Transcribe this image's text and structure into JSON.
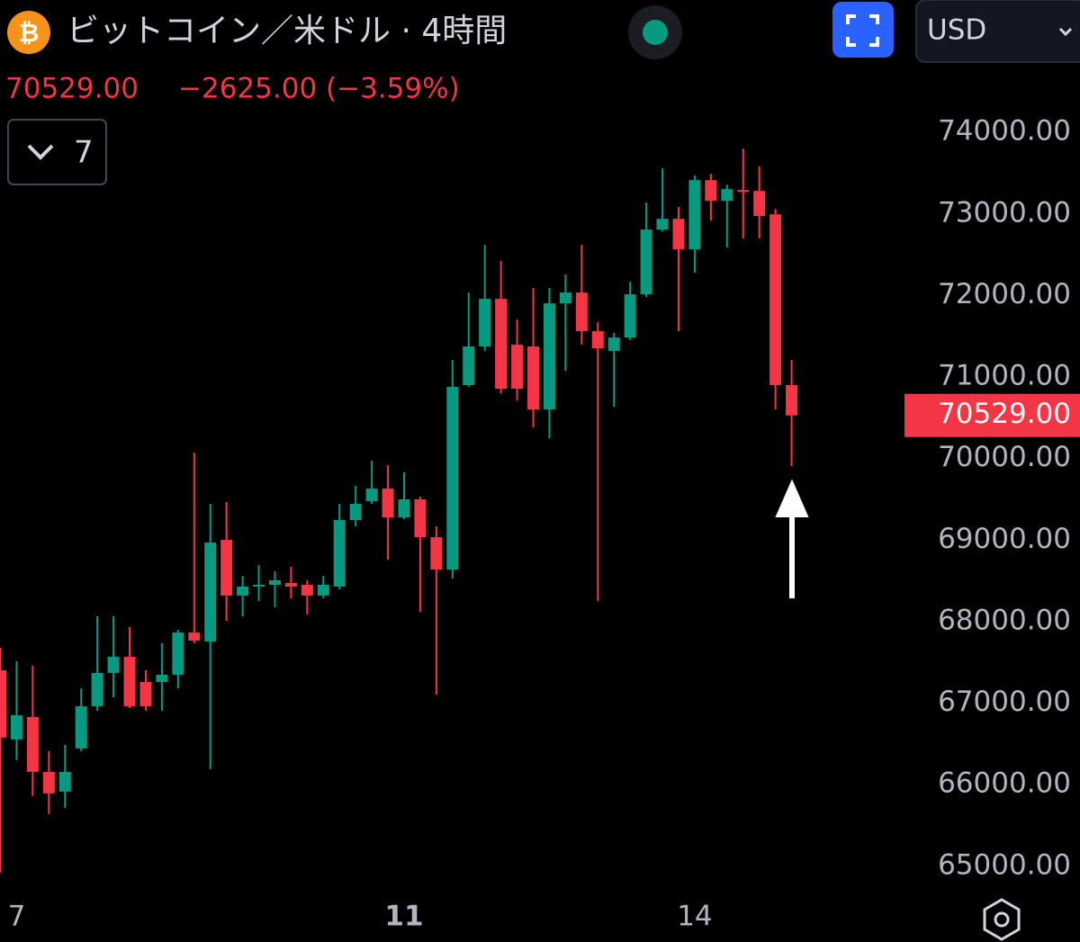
{
  "header": {
    "coin_symbol": "₿",
    "symbol": "ビットコイン／米ドル · 4時間",
    "currency": "USD",
    "price": "70529.00",
    "change": "−2625.00 (−3.59%)",
    "indicator_count": "7"
  },
  "chart_data": {
    "type": "candlestick",
    "categories": [
      null,
      "7",
      null,
      null,
      null,
      null,
      null,
      null,
      null,
      null,
      null,
      null,
      null,
      null,
      null,
      null,
      null,
      null,
      null,
      null,
      null,
      null,
      null,
      null,
      null,
      "11",
      null,
      null,
      null,
      null,
      null,
      null,
      null,
      null,
      null,
      null,
      null,
      null,
      null,
      null,
      null,
      null,
      null,
      "14",
      null,
      null,
      null,
      null,
      null,
      null
    ],
    "open": [
      67404,
      66555,
      66831,
      66158,
      65915,
      66444,
      66963,
      67371,
      67570,
      67261,
      67261,
      67349,
      67867,
      67757,
      69003,
      68320,
      68430,
      68452,
      68474,
      68452,
      68320,
      68430,
      69246,
      69478,
      69632,
      69279,
      69500,
      69036,
      68639,
      70901,
      71375,
      71959,
      71397,
      71375,
      70603,
      71904,
      72037,
      71562,
      71320,
      71485,
      72015,
      72809,
      72941,
      72566,
      73415,
      73162,
      73294,
      73283,
      72996,
      70901
    ],
    "high": [
      67680,
      67514,
      67459,
      66411,
      66489,
      67183,
      68066,
      68066,
      67933,
      67404,
      67735,
      67900,
      70073,
      69445,
      69467,
      68562,
      68695,
      68617,
      68673,
      68507,
      68562,
      69445,
      69665,
      69974,
      69919,
      69831,
      69533,
      69169,
      71209,
      72037,
      72621,
      72423,
      71706,
      72092,
      72092,
      72257,
      72621,
      71673,
      71540,
      72169,
      73140,
      73559,
      73085,
      73471,
      73493,
      73360,
      73801,
      73581,
      73062,
      71209
    ],
    "low": [
      64922,
      66301,
      65860,
      65639,
      65716,
      66411,
      66908,
      67073,
      66941,
      66908,
      66908,
      67183,
      67735,
      66191,
      68011,
      68066,
      68253,
      68176,
      68286,
      68088,
      68286,
      68397,
      69169,
      69445,
      68761,
      69257,
      68121,
      67106,
      68529,
      70879,
      71320,
      70801,
      70713,
      70382,
      70250,
      71077,
      71397,
      68253,
      70636,
      71452,
      71982,
      72787,
      71562,
      72279,
      72919,
      72588,
      72698,
      72698,
      70603,
      69908
    ],
    "close": [
      66577,
      66853,
      66158,
      65893,
      66158,
      66963,
      67371,
      67570,
      66963,
      66963,
      67349,
      67867,
      67768,
      68970,
      68320,
      68430,
      68452,
      68507,
      68430,
      68320,
      68452,
      69246,
      69445,
      69632,
      69279,
      69500,
      69036,
      68639,
      70879,
      71375,
      71959,
      70856,
      70856,
      70603,
      71904,
      72037,
      71562,
      71353,
      71485,
      72015,
      72809,
      72941,
      72566,
      73415,
      73162,
      73305,
      73283,
      72974,
      70901,
      70529
    ],
    "up_color": "#089981",
    "down_color": "#f23645",
    "ylim": [
      64700,
      74300
    ],
    "yticks": [
      {
        "value": 65000,
        "label": "65000.00"
      },
      {
        "value": 66000,
        "label": "66000.00"
      },
      {
        "value": 67000,
        "label": "67000.00"
      },
      {
        "value": 68000,
        "label": "68000.00"
      },
      {
        "value": 69000,
        "label": "69000.00"
      },
      {
        "value": 70000,
        "label": "70000.00"
      },
      {
        "value": 71000,
        "label": "71000.00"
      },
      {
        "value": 72000,
        "label": "72000.00"
      },
      {
        "value": 73000,
        "label": "73000.00"
      },
      {
        "value": 74000,
        "label": "74000.00"
      }
    ],
    "last_price": {
      "value": 70529,
      "label": "70529.00"
    }
  }
}
